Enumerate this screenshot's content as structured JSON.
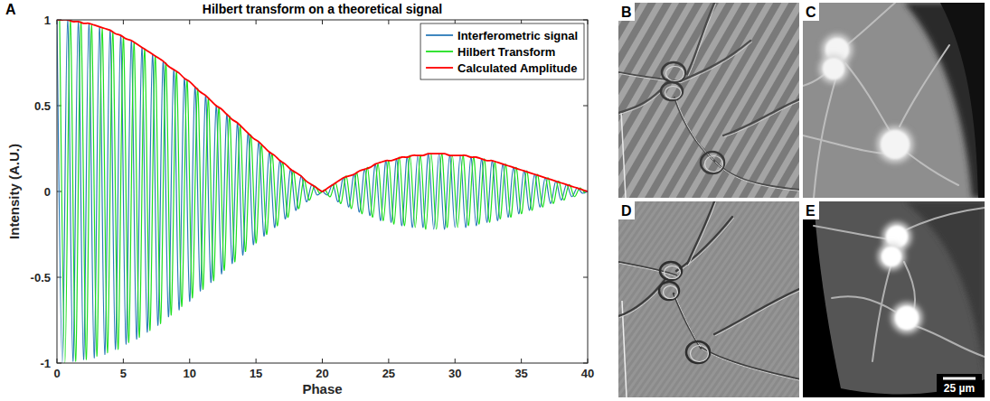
{
  "chart_data": {
    "type": "line",
    "title": "Hilbert transform on a theoretical signal",
    "x_label": "Phase",
    "y_label": "Intensity (A.U.)",
    "xlim": [
      0,
      40
    ],
    "xticks": [
      0,
      5,
      10,
      15,
      20,
      25,
      30,
      35,
      40
    ],
    "ylim": [
      -1,
      1
    ],
    "yticks": [
      -1,
      -0.5,
      0,
      0.5,
      1
    ],
    "grid": false,
    "legend": "upper right",
    "series": [
      {
        "name": "Interferometric signal",
        "color": "#2a7ab8",
        "x": [
          0,
          0.4,
          0.8,
          1.2,
          1.6,
          2,
          2.4,
          2.8,
          3.2,
          3.6,
          4,
          4.4,
          4.8,
          5.2,
          5.6,
          6,
          6.4,
          6.8,
          7.2,
          7.6,
          8,
          8.4,
          8.8,
          9.2,
          9.6,
          10,
          10.4,
          10.8,
          11.2,
          11.6,
          12,
          12.4,
          12.8,
          13.2,
          13.6,
          14,
          14.4,
          14.8,
          15.2,
          15.6,
          16,
          16.4,
          16.8,
          17.2,
          17.6,
          18,
          18.4,
          18.8,
          19.2,
          19.6,
          20,
          20.4,
          20.8,
          21.2,
          21.6,
          22,
          22.4,
          22.8,
          23.2,
          23.6,
          24,
          24.4,
          24.8,
          25.2,
          25.6,
          26,
          26.4,
          26.8,
          27.2,
          27.6,
          28,
          28.4,
          28.8,
          29.2,
          29.6,
          30,
          30.4,
          30.8,
          31.2,
          31.6,
          32,
          32.4,
          32.8,
          33.2,
          33.6,
          34,
          34.4,
          34.8,
          35.2,
          35.6,
          36,
          36.4,
          36.8,
          37.2,
          37.6,
          38,
          38.4,
          38.8,
          39.2,
          39.6,
          40
        ],
        "values": [
          1,
          -1,
          1,
          -0.99,
          0.99,
          -0.98,
          0.98,
          -0.97,
          0.96,
          -0.95,
          0.94,
          -0.92,
          0.91,
          -0.89,
          0.88,
          -0.86,
          0.84,
          -0.82,
          0.8,
          -0.78,
          0.76,
          -0.73,
          0.71,
          -0.69,
          0.66,
          -0.64,
          0.61,
          -0.58,
          0.56,
          -0.53,
          0.5,
          -0.48,
          0.45,
          -0.42,
          0.4,
          -0.37,
          0.34,
          -0.31,
          0.29,
          -0.26,
          0.23,
          -0.21,
          0.18,
          -0.16,
          0.13,
          -0.11,
          0.09,
          -0.06,
          0.04,
          -0.02,
          0,
          -0.02,
          0.04,
          -0.06,
          0.08,
          -0.09,
          0.1,
          -0.12,
          0.13,
          -0.14,
          0.16,
          -0.17,
          0.18,
          -0.18,
          0.19,
          -0.2,
          0.2,
          -0.21,
          0.21,
          -0.21,
          0.22,
          -0.22,
          0.22,
          -0.22,
          0.21,
          -0.21,
          0.21,
          -0.21,
          0.2,
          -0.2,
          0.19,
          -0.18,
          0.18,
          -0.17,
          0.16,
          -0.15,
          0.14,
          -0.13,
          0.12,
          -0.11,
          0.1,
          -0.09,
          0.08,
          -0.07,
          0.06,
          -0.05,
          0.04,
          -0.03,
          0.02,
          -0.01,
          0
        ]
      },
      {
        "name": "Hilbert Transform",
        "color": "#1fe01f",
        "x": [
          0.2,
          0.6,
          1,
          1.4,
          1.8,
          2.2,
          2.6,
          3,
          3.4,
          3.8,
          4.2,
          4.6,
          5,
          5.4,
          5.8,
          6.2,
          6.6,
          7,
          7.4,
          7.8,
          8.2,
          8.6,
          9,
          9.4,
          9.8,
          10.2,
          10.6,
          11,
          11.4,
          11.8,
          12.2,
          12.6,
          13,
          13.4,
          13.8,
          14.2,
          14.6,
          15,
          15.4,
          15.8,
          16.2,
          16.6,
          17,
          17.4,
          17.8,
          18.2,
          18.6,
          19,
          19.4,
          19.8,
          20.2,
          20.6,
          21,
          21.4,
          21.8,
          22.2,
          22.6,
          23,
          23.4,
          23.8,
          24.2,
          24.6,
          25,
          25.4,
          25.8,
          26.2,
          26.6,
          27,
          27.4,
          27.8,
          28.2,
          28.6,
          29,
          29.4,
          29.8,
          30.2,
          30.6,
          31,
          31.4,
          31.8,
          32.2,
          32.6,
          33,
          33.4,
          33.8,
          34.2,
          34.6,
          35,
          35.4,
          35.8,
          36.2,
          36.6,
          37,
          37.4,
          37.8,
          38.2,
          38.6,
          39,
          39.4,
          39.8
        ],
        "values": [
          1,
          -1,
          1,
          -0.99,
          0.99,
          -0.98,
          0.97,
          -0.96,
          0.95,
          -0.94,
          0.93,
          -0.92,
          0.9,
          -0.88,
          0.87,
          -0.85,
          0.83,
          -0.81,
          0.79,
          -0.77,
          0.75,
          -0.72,
          0.7,
          -0.67,
          0.65,
          -0.62,
          0.6,
          -0.57,
          0.54,
          -0.52,
          0.49,
          -0.46,
          0.44,
          -0.41,
          0.38,
          -0.35,
          0.33,
          -0.3,
          0.27,
          -0.25,
          0.22,
          -0.2,
          0.17,
          -0.15,
          0.12,
          -0.1,
          0.07,
          -0.05,
          0.03,
          -0.01,
          0.01,
          -0.03,
          0.05,
          -0.07,
          0.09,
          -0.1,
          0.11,
          -0.13,
          0.14,
          -0.15,
          0.16,
          -0.17,
          0.18,
          -0.19,
          0.2,
          -0.2,
          0.21,
          -0.21,
          0.21,
          -0.22,
          0.22,
          -0.22,
          0.22,
          -0.21,
          0.21,
          -0.21,
          0.21,
          -0.2,
          0.2,
          -0.19,
          0.19,
          -0.18,
          0.17,
          -0.16,
          0.16,
          -0.15,
          0.14,
          -0.13,
          0.12,
          -0.11,
          0.1,
          -0.09,
          0.08,
          -0.07,
          0.06,
          -0.05,
          0.04,
          -0.03,
          0.02,
          -0.01
        ]
      },
      {
        "name": "Calculated Amplitude",
        "color": "#ff0000",
        "x": [
          0,
          0.4,
          0.8,
          1.2,
          1.6,
          2,
          2.4,
          2.8,
          3.2,
          3.6,
          4,
          4.4,
          4.8,
          5.2,
          5.6,
          6,
          6.4,
          6.8,
          7.2,
          7.6,
          8,
          8.4,
          8.8,
          9.2,
          9.6,
          10,
          10.4,
          10.8,
          11.2,
          11.6,
          12,
          12.4,
          12.8,
          13.2,
          13.6,
          14,
          14.4,
          14.8,
          15.2,
          15.6,
          16,
          16.4,
          16.8,
          17.2,
          17.6,
          18,
          18.4,
          18.8,
          19.2,
          19.6,
          20,
          20.4,
          20.8,
          21.2,
          21.6,
          22,
          22.4,
          22.8,
          23.2,
          23.6,
          24,
          24.4,
          24.8,
          25.2,
          25.6,
          26,
          26.4,
          26.8,
          27.2,
          27.6,
          28,
          28.4,
          28.8,
          29.2,
          29.6,
          30,
          30.4,
          30.8,
          31.2,
          31.6,
          32,
          32.4,
          32.8,
          33.2,
          33.6,
          34,
          34.4,
          34.8,
          35.2,
          35.6,
          36,
          36.4,
          36.8,
          37.2,
          37.6,
          38,
          38.4,
          38.8,
          39.2,
          39.6,
          40
        ],
        "values": [
          1,
          1,
          1,
          0.99,
          0.99,
          0.98,
          0.98,
          0.97,
          0.96,
          0.95,
          0.94,
          0.92,
          0.91,
          0.89,
          0.88,
          0.86,
          0.84,
          0.82,
          0.8,
          0.78,
          0.76,
          0.73,
          0.71,
          0.69,
          0.66,
          0.64,
          0.61,
          0.58,
          0.56,
          0.53,
          0.5,
          0.48,
          0.45,
          0.42,
          0.4,
          0.37,
          0.34,
          0.31,
          0.29,
          0.26,
          0.23,
          0.21,
          0.18,
          0.16,
          0.13,
          0.11,
          0.09,
          0.06,
          0.04,
          0.02,
          0,
          0.02,
          0.04,
          0.06,
          0.08,
          0.09,
          0.1,
          0.12,
          0.13,
          0.14,
          0.16,
          0.17,
          0.18,
          0.18,
          0.19,
          0.2,
          0.2,
          0.21,
          0.21,
          0.21,
          0.22,
          0.22,
          0.22,
          0.22,
          0.21,
          0.21,
          0.21,
          0.21,
          0.2,
          0.2,
          0.19,
          0.18,
          0.18,
          0.17,
          0.16,
          0.15,
          0.14,
          0.13,
          0.12,
          0.11,
          0.1,
          0.09,
          0.08,
          0.07,
          0.06,
          0.05,
          0.04,
          0.03,
          0.02,
          0.01,
          0
        ]
      }
    ]
  },
  "figure": {
    "panel_labels": [
      "A",
      "B",
      "C",
      "D",
      "E"
    ],
    "scale_bar_label": "25 µm"
  }
}
